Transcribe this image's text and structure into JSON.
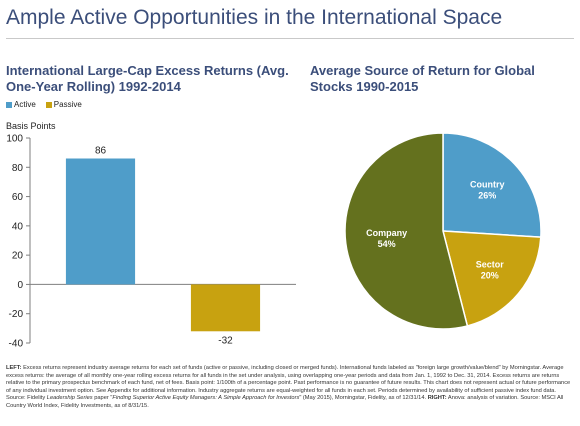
{
  "page": {
    "title": "Ample Active Opportunities in the International Space"
  },
  "colors": {
    "title": "#3b4e7a",
    "active": "#4f9dc9",
    "passive": "#c8a210",
    "company": "#64711e",
    "country": "#4f9dc9",
    "sector": "#c8a210"
  },
  "chart_data": [
    {
      "type": "bar",
      "title": "International Large-Cap Excess Returns (Avg. One-Year Rolling) 1992-2014",
      "ylabel": "Basis Points",
      "legend": "top-left",
      "categories": [
        "Active",
        "Passive"
      ],
      "values": [
        86,
        -32
      ],
      "data_labels": [
        "86",
        "-32"
      ],
      "ylim": [
        -40,
        100
      ],
      "yticks": [
        -40,
        -20,
        0,
        20,
        40,
        60,
        80,
        100
      ],
      "grid": false
    },
    {
      "type": "pie",
      "title": "Average Source of Return for Global Stocks 1990-2015",
      "slices": [
        {
          "label": "Country",
          "value": 26,
          "value_label": "26%"
        },
        {
          "label": "Sector",
          "value": 20,
          "value_label": "20%"
        },
        {
          "label": "Company",
          "value": 54,
          "value_label": "54%"
        }
      ]
    }
  ],
  "footnote": {
    "left_tag": "LEFT:",
    "left_text": " Excess returns represent industry average returns for each set of funds (active or passive, including closed or merged funds). International funds labeled as \"foreign large growth/value/blend\" by Morningstar. Average excess returns: the average of all monthly one-year rolling excess returns for all funds in the set under analysis, using overlapping one-year periods and data from Jan. 1, 1992 to Dec. 31, 2014. Excess returns are returns relative to the primary prospectus benchmark of each fund, net of fees. Basis point: 1/100th of a percentage point. Past performance is no guarantee of future results. This chart does not represent actual or future performance of any individual investment option. See Appendix for additional information. Industry aggregate returns are equal-weighted for all funds in each set. Periods determined by availability of sufficient passive index fund data. Source: Fidelity ",
    "series_italic": "Leadership Series",
    "paper_prefix": " paper \"",
    "paper_title": "Finding Superior Active Equity Managers: A Simple Approach for Investors",
    "paper_suffix": "\" (May 2015), Morningstar, Fidelity, as of 12/31/14. ",
    "right_tag": "RIGHT:",
    "right_text": " Anova: analysis of variation. Source: MSCI All Country World Index, Fidelity Investments, as of 8/31/15."
  }
}
